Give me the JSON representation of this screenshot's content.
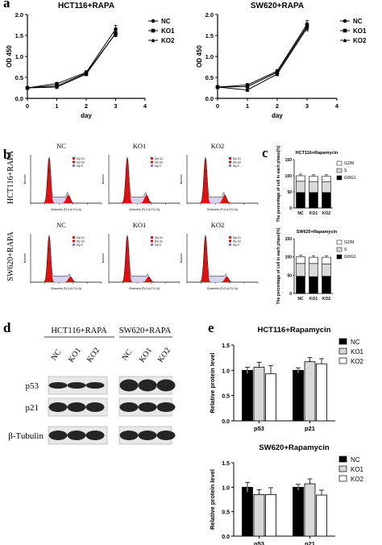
{
  "panels": {
    "a": "a",
    "b": "b",
    "c": "c",
    "d": "d",
    "e": "e"
  },
  "chart_data": [
    {
      "id": "a1",
      "type": "line",
      "title": "HCT116+RAPA",
      "xlabel": "day",
      "ylabel": "OD 450",
      "xlim": [
        0,
        4
      ],
      "ylim": [
        0.0,
        2.0
      ],
      "xticks": [
        0,
        1,
        2,
        3,
        4
      ],
      "yticks": [
        0.0,
        0.5,
        1.0,
        1.5,
        2.0
      ],
      "x": [
        0,
        1,
        2,
        3
      ],
      "series": [
        {
          "name": "NC",
          "values": [
            0.25,
            0.35,
            0.62,
            1.65
          ],
          "err": [
            0.02,
            0.03,
            0.04,
            0.09
          ],
          "marker": "circle"
        },
        {
          "name": "KO1",
          "values": [
            0.25,
            0.3,
            0.6,
            1.55
          ],
          "err": [
            0.02,
            0.02,
            0.04,
            0.08
          ],
          "marker": "square"
        },
        {
          "name": "KO2",
          "values": [
            0.25,
            0.27,
            0.58,
            1.55
          ],
          "err": [
            0.02,
            0.02,
            0.04,
            0.06
          ],
          "marker": "triangle"
        }
      ],
      "legend": "top-right"
    },
    {
      "id": "a2",
      "type": "line",
      "title": "SW620+RAPA",
      "xlabel": "day",
      "ylabel": "OD 450",
      "xlim": [
        0,
        4
      ],
      "ylim": [
        0.0,
        2.0
      ],
      "xticks": [
        0,
        1,
        2,
        3,
        4
      ],
      "yticks": [
        0.0,
        0.5,
        1.0,
        1.5,
        2.0
      ],
      "x": [
        0,
        1,
        2,
        3
      ],
      "series": [
        {
          "name": "NC",
          "values": [
            0.27,
            0.32,
            0.65,
            1.77
          ],
          "err": [
            0.02,
            0.03,
            0.04,
            0.09
          ],
          "marker": "circle"
        },
        {
          "name": "KO1",
          "values": [
            0.27,
            0.28,
            0.62,
            1.72
          ],
          "err": [
            0.02,
            0.02,
            0.04,
            0.08
          ],
          "marker": "square"
        },
        {
          "name": "KO2",
          "values": [
            0.27,
            0.2,
            0.58,
            1.68
          ],
          "err": [
            0.02,
            0.02,
            0.04,
            0.07
          ],
          "marker": "triangle"
        }
      ],
      "legend": "top-right"
    },
    {
      "id": "c1",
      "type": "bar",
      "stacked": true,
      "title": "HCT116+Rapamycin",
      "ylabel": "The percentage of cell in each phase(%)",
      "categories": [
        "NC",
        "KO1",
        "KO2"
      ],
      "ylim": [
        0,
        150
      ],
      "yticks": [
        0,
        50,
        100,
        150
      ],
      "series": [
        {
          "name": "G0/G1",
          "values": [
            48,
            48,
            48
          ],
          "color": "#000000"
        },
        {
          "name": "S",
          "values": [
            35,
            34,
            33
          ],
          "color": "#d9d9d9"
        },
        {
          "name": "G2/M",
          "values": [
            17,
            16,
            17
          ],
          "color": "#ffffff"
        }
      ]
    },
    {
      "id": "c2",
      "type": "bar",
      "stacked": true,
      "title": "SW620+Rapamycin",
      "ylabel": "The percentage of cell in each phase(%)",
      "categories": [
        "NC",
        "KO1",
        "KO2"
      ],
      "ylim": [
        0,
        150
      ],
      "yticks": [
        0,
        50,
        100,
        150
      ],
      "series": [
        {
          "name": "G0/G1",
          "values": [
            47,
            46,
            47
          ],
          "color": "#000000"
        },
        {
          "name": "S",
          "values": [
            35,
            36,
            34
          ],
          "color": "#d9d9d9"
        },
        {
          "name": "G2/M",
          "values": [
            18,
            17,
            18
          ],
          "color": "#ffffff"
        }
      ]
    },
    {
      "id": "e1",
      "type": "bar",
      "title": "HCT116+Rapamycin",
      "ylabel": "Relative protein level",
      "categories": [
        "p53",
        "p21"
      ],
      "ylim": [
        0,
        1.5
      ],
      "yticks": [
        0.0,
        0.5,
        1.0,
        1.5
      ],
      "series": [
        {
          "name": "NC",
          "values": [
            1.0,
            1.0
          ],
          "err": [
            0.06,
            0.05
          ],
          "color": "#000000"
        },
        {
          "name": "KO1",
          "values": [
            1.06,
            1.17
          ],
          "err": [
            0.1,
            0.08
          ],
          "color": "#d9d9d9"
        },
        {
          "name": "KO2",
          "values": [
            0.93,
            1.13
          ],
          "err": [
            0.16,
            0.1
          ],
          "color": "#ffffff"
        }
      ],
      "legend": "top-right"
    },
    {
      "id": "e2",
      "type": "bar",
      "title": "SW620+Rapamycin",
      "ylabel": "Relative protein level",
      "categories": [
        "p53",
        "p21"
      ],
      "ylim": [
        0,
        1.5
      ],
      "yticks": [
        0.0,
        0.5,
        1.0,
        1.5
      ],
      "series": [
        {
          "name": "NC",
          "values": [
            1.0,
            1.0
          ],
          "err": [
            0.1,
            0.06
          ],
          "color": "#000000"
        },
        {
          "name": "KO1",
          "values": [
            0.85,
            1.07
          ],
          "err": [
            0.1,
            0.1
          ],
          "color": "#d9d9d9"
        },
        {
          "name": "KO2",
          "values": [
            0.85,
            0.84
          ],
          "err": [
            0.14,
            0.1
          ],
          "color": "#ffffff"
        }
      ],
      "legend": "top-right"
    }
  ],
  "flow": {
    "rows": [
      "HCT116+RAPA",
      "SW620+RAPA"
    ],
    "cols": [
      "NC",
      "KO1",
      "KO2"
    ],
    "xlabel": "Channels (FL2-A-FL2-A)",
    "ylabel": "Number",
    "legend": [
      "Dip G1",
      "Dip G2",
      "Dip S"
    ]
  },
  "blot": {
    "groups": [
      "HCT116+RAPA",
      "SW620+RAPA"
    ],
    "lanes": [
      "NC",
      "KO1",
      "KO2"
    ],
    "rows": [
      "p53",
      "p21",
      "β-Tubulin"
    ]
  }
}
